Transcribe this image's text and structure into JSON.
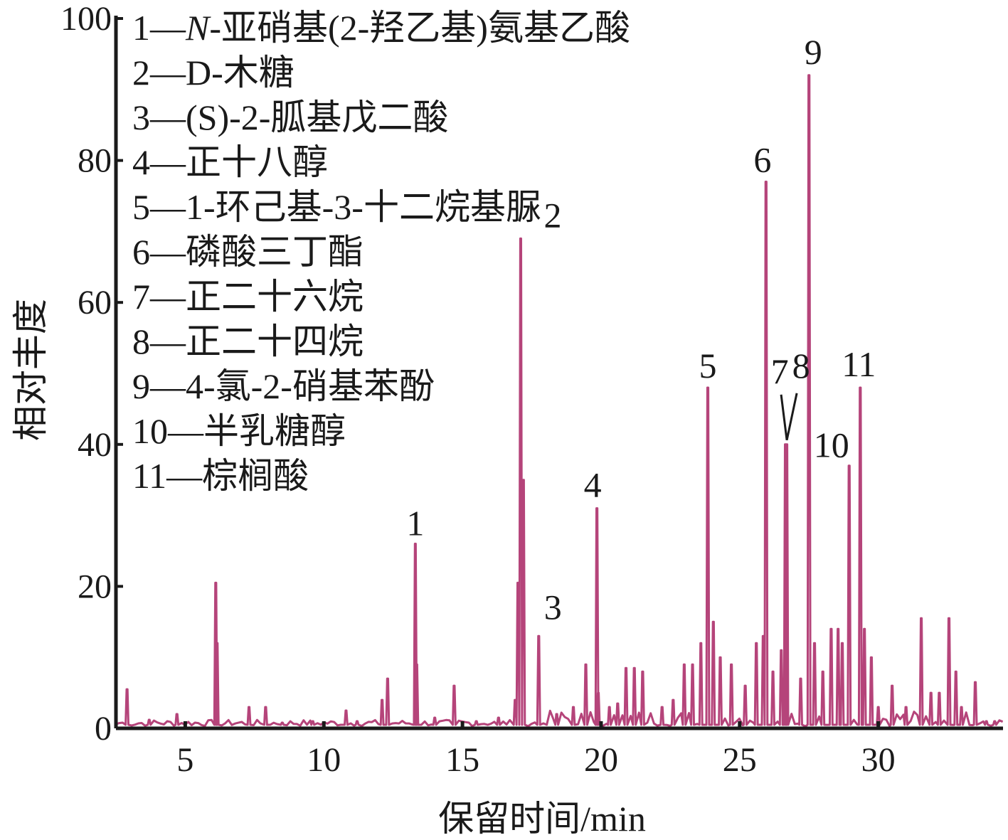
{
  "chart_data": {
    "type": "line",
    "xlabel": "保留时间/min",
    "ylabel": "相对丰度",
    "xlim": [
      2.5,
      34.5
    ],
    "ylim": [
      0,
      100
    ],
    "xticks": [
      "5",
      "10",
      "15",
      "20",
      "25",
      "30"
    ],
    "yticks": [
      "0",
      "20",
      "40",
      "60",
      "80",
      "100"
    ],
    "line_color": "#b5447a",
    "legend": [
      {
        "num": "1",
        "prefix": "1—",
        "italic": "N",
        "rest": "-亚硝基(2-羟乙基)氨基乙酸"
      },
      {
        "num": "2",
        "prefix": "2—",
        "italic": "",
        "rest": "D-木糖"
      },
      {
        "num": "3",
        "prefix": "3—",
        "italic": "",
        "rest": "(S)-2-胍基戊二酸"
      },
      {
        "num": "4",
        "prefix": "4—",
        "italic": "",
        "rest": "正十八醇"
      },
      {
        "num": "5",
        "prefix": "5—",
        "italic": "",
        "rest": "1-环己基-3-十二烷基脲"
      },
      {
        "num": "6",
        "prefix": "6—",
        "italic": "",
        "rest": "磷酸三丁酯"
      },
      {
        "num": "7",
        "prefix": "7—",
        "italic": "",
        "rest": "正二十六烷"
      },
      {
        "num": "8",
        "prefix": "8—",
        "italic": "",
        "rest": "正二十四烷"
      },
      {
        "num": "9",
        "prefix": "9—",
        "italic": "",
        "rest": "4-氯-2-硝基苯酚"
      },
      {
        "num": "10",
        "prefix": "10—",
        "italic": "",
        "rest": "半乳糖醇"
      },
      {
        "num": "11",
        "prefix": "11—",
        "italic": "",
        "rest": "棕榈酸"
      }
    ],
    "labeled_peaks": [
      {
        "label": "1",
        "x": 13.3,
        "y": 26
      },
      {
        "label": "2",
        "x": 17.1,
        "y": 69
      },
      {
        "label": "3",
        "x": 17.75,
        "y": 13
      },
      {
        "label": "4",
        "x": 19.85,
        "y": 31
      },
      {
        "label": "5",
        "x": 23.85,
        "y": 48
      },
      {
        "label": "6",
        "x": 25.95,
        "y": 77
      },
      {
        "label": "7",
        "x": 26.65,
        "y": 40
      },
      {
        "label": "8",
        "x": 26.7,
        "y": 40
      },
      {
        "label": "9",
        "x": 27.5,
        "y": 92
      },
      {
        "label": "10",
        "x": 28.95,
        "y": 37
      },
      {
        "label": "11",
        "x": 29.35,
        "y": 48
      }
    ],
    "minor_peaks": [
      [
        2.9,
        5.5
      ],
      [
        3.7,
        1.2
      ],
      [
        4.7,
        2
      ],
      [
        6.1,
        20.5
      ],
      [
        6.15,
        12
      ],
      [
        7.3,
        3
      ],
      [
        7.9,
        3
      ],
      [
        8.5,
        0.8
      ],
      [
        9.6,
        1
      ],
      [
        10.8,
        2.5
      ],
      [
        11.2,
        1
      ],
      [
        12.1,
        4
      ],
      [
        12.3,
        7
      ],
      [
        13.35,
        9
      ],
      [
        14.0,
        1.5
      ],
      [
        14.7,
        6
      ],
      [
        15.5,
        1
      ],
      [
        16.3,
        1.5
      ],
      [
        16.9,
        4
      ],
      [
        17.0,
        20.5
      ],
      [
        17.2,
        35
      ],
      [
        18.4,
        2
      ],
      [
        19.0,
        3
      ],
      [
        19.45,
        9
      ],
      [
        19.9,
        5
      ],
      [
        20.3,
        3
      ],
      [
        20.6,
        3.5
      ],
      [
        20.9,
        8.5
      ],
      [
        21.2,
        8.5
      ],
      [
        21.5,
        8
      ],
      [
        22.2,
        3
      ],
      [
        22.6,
        4
      ],
      [
        23.0,
        9
      ],
      [
        23.3,
        9
      ],
      [
        23.6,
        12
      ],
      [
        24.05,
        15
      ],
      [
        24.3,
        10
      ],
      [
        24.7,
        9
      ],
      [
        25.2,
        6
      ],
      [
        25.6,
        12
      ],
      [
        25.85,
        13
      ],
      [
        26.2,
        8
      ],
      [
        26.5,
        11
      ],
      [
        27.2,
        7
      ],
      [
        27.7,
        12
      ],
      [
        28.0,
        8
      ],
      [
        28.3,
        14
      ],
      [
        28.55,
        14
      ],
      [
        28.7,
        12
      ],
      [
        29.5,
        14
      ],
      [
        29.75,
        10
      ],
      [
        30.0,
        3
      ],
      [
        30.5,
        6
      ],
      [
        31.0,
        3
      ],
      [
        31.55,
        15.5
      ],
      [
        31.9,
        5
      ],
      [
        32.2,
        5
      ],
      [
        32.55,
        15.5
      ],
      [
        32.8,
        8
      ],
      [
        33.0,
        3
      ],
      [
        33.5,
        6.5
      ],
      [
        33.9,
        1
      ],
      [
        34.2,
        1
      ]
    ]
  }
}
